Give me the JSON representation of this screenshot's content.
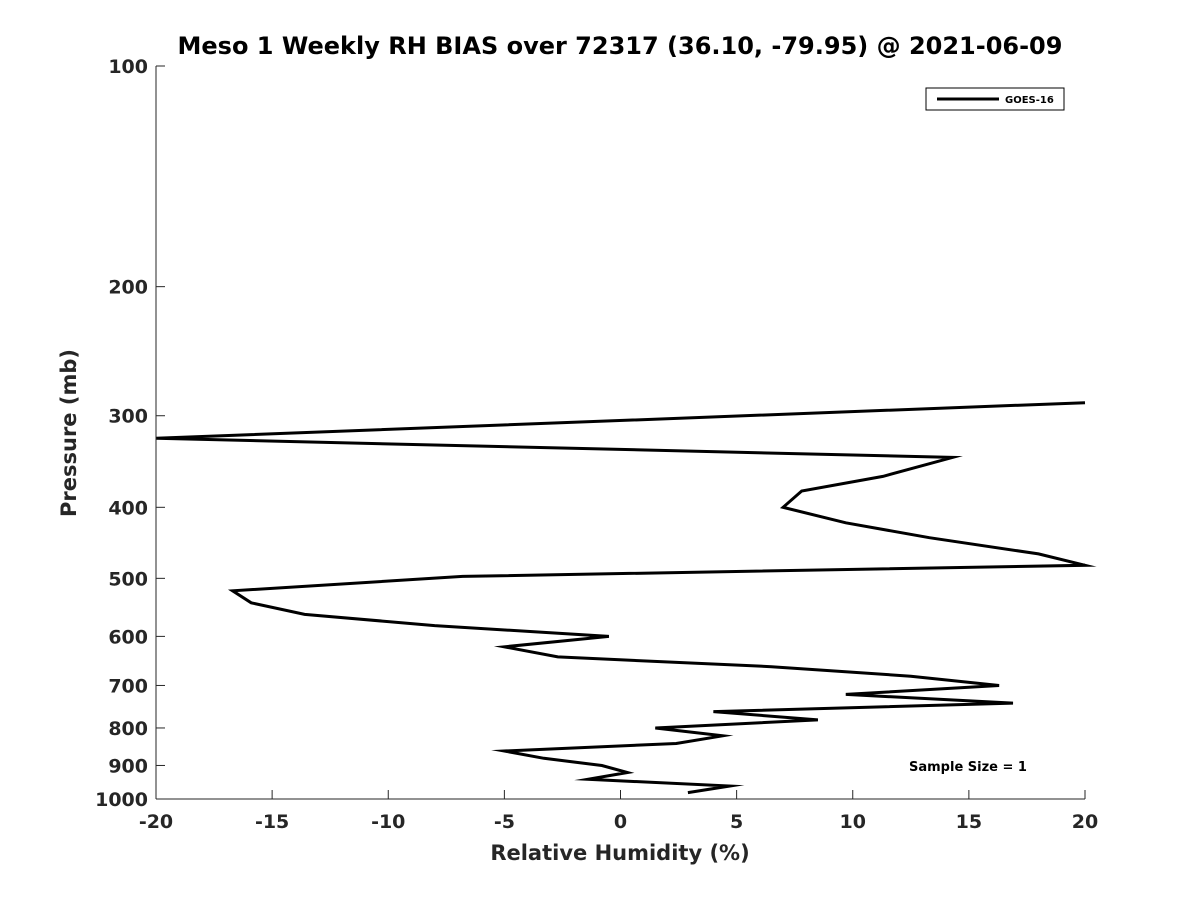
{
  "chart_data": {
    "type": "line",
    "title": "Meso 1 Weekly RH BIAS over 72317 (36.10, -79.95) @ 2021-06-09",
    "xlabel": "Relative Humidity (%)",
    "ylabel": "Pressure (mb)",
    "xlim": [
      -20,
      20
    ],
    "ylim": [
      100,
      1000
    ],
    "y_scale": "log",
    "y_reversed": true,
    "x_ticks": [
      -20,
      -15,
      -10,
      -5,
      0,
      5,
      10,
      15,
      20
    ],
    "y_ticks": [
      100,
      200,
      300,
      400,
      500,
      600,
      700,
      800,
      900,
      1000
    ],
    "grid": false,
    "legend_position": "top-right",
    "annotation": "Sample Size = 1",
    "line_color": "#000000",
    "series": [
      {
        "name": "GOES-16",
        "points": [
          [
            20.0,
            288
          ],
          [
            -20.0,
            322
          ],
          [
            14.3,
            342
          ],
          [
            11.3,
            363
          ],
          [
            7.8,
            380
          ],
          [
            7.0,
            400
          ],
          [
            9.7,
            420
          ],
          [
            13.3,
            440
          ],
          [
            18.0,
            463
          ],
          [
            20.0,
            480
          ],
          [
            -6.8,
            497
          ],
          [
            -16.7,
            520
          ],
          [
            -15.9,
            540
          ],
          [
            -13.6,
            560
          ],
          [
            -8.0,
            580
          ],
          [
            -0.5,
            600
          ],
          [
            -5.0,
            620
          ],
          [
            -2.7,
            640
          ],
          [
            6.5,
            660
          ],
          [
            12.5,
            680
          ],
          [
            16.3,
            700
          ],
          [
            9.7,
            720
          ],
          [
            16.9,
            740
          ],
          [
            4.0,
            760
          ],
          [
            8.5,
            780
          ],
          [
            1.5,
            800
          ],
          [
            4.4,
            820
          ],
          [
            2.4,
            840
          ],
          [
            -5.0,
            860
          ],
          [
            -3.3,
            880
          ],
          [
            -0.8,
            900
          ],
          [
            0.3,
            920
          ],
          [
            -1.4,
            940
          ],
          [
            4.7,
            960
          ],
          [
            2.9,
            980
          ]
        ]
      }
    ]
  }
}
